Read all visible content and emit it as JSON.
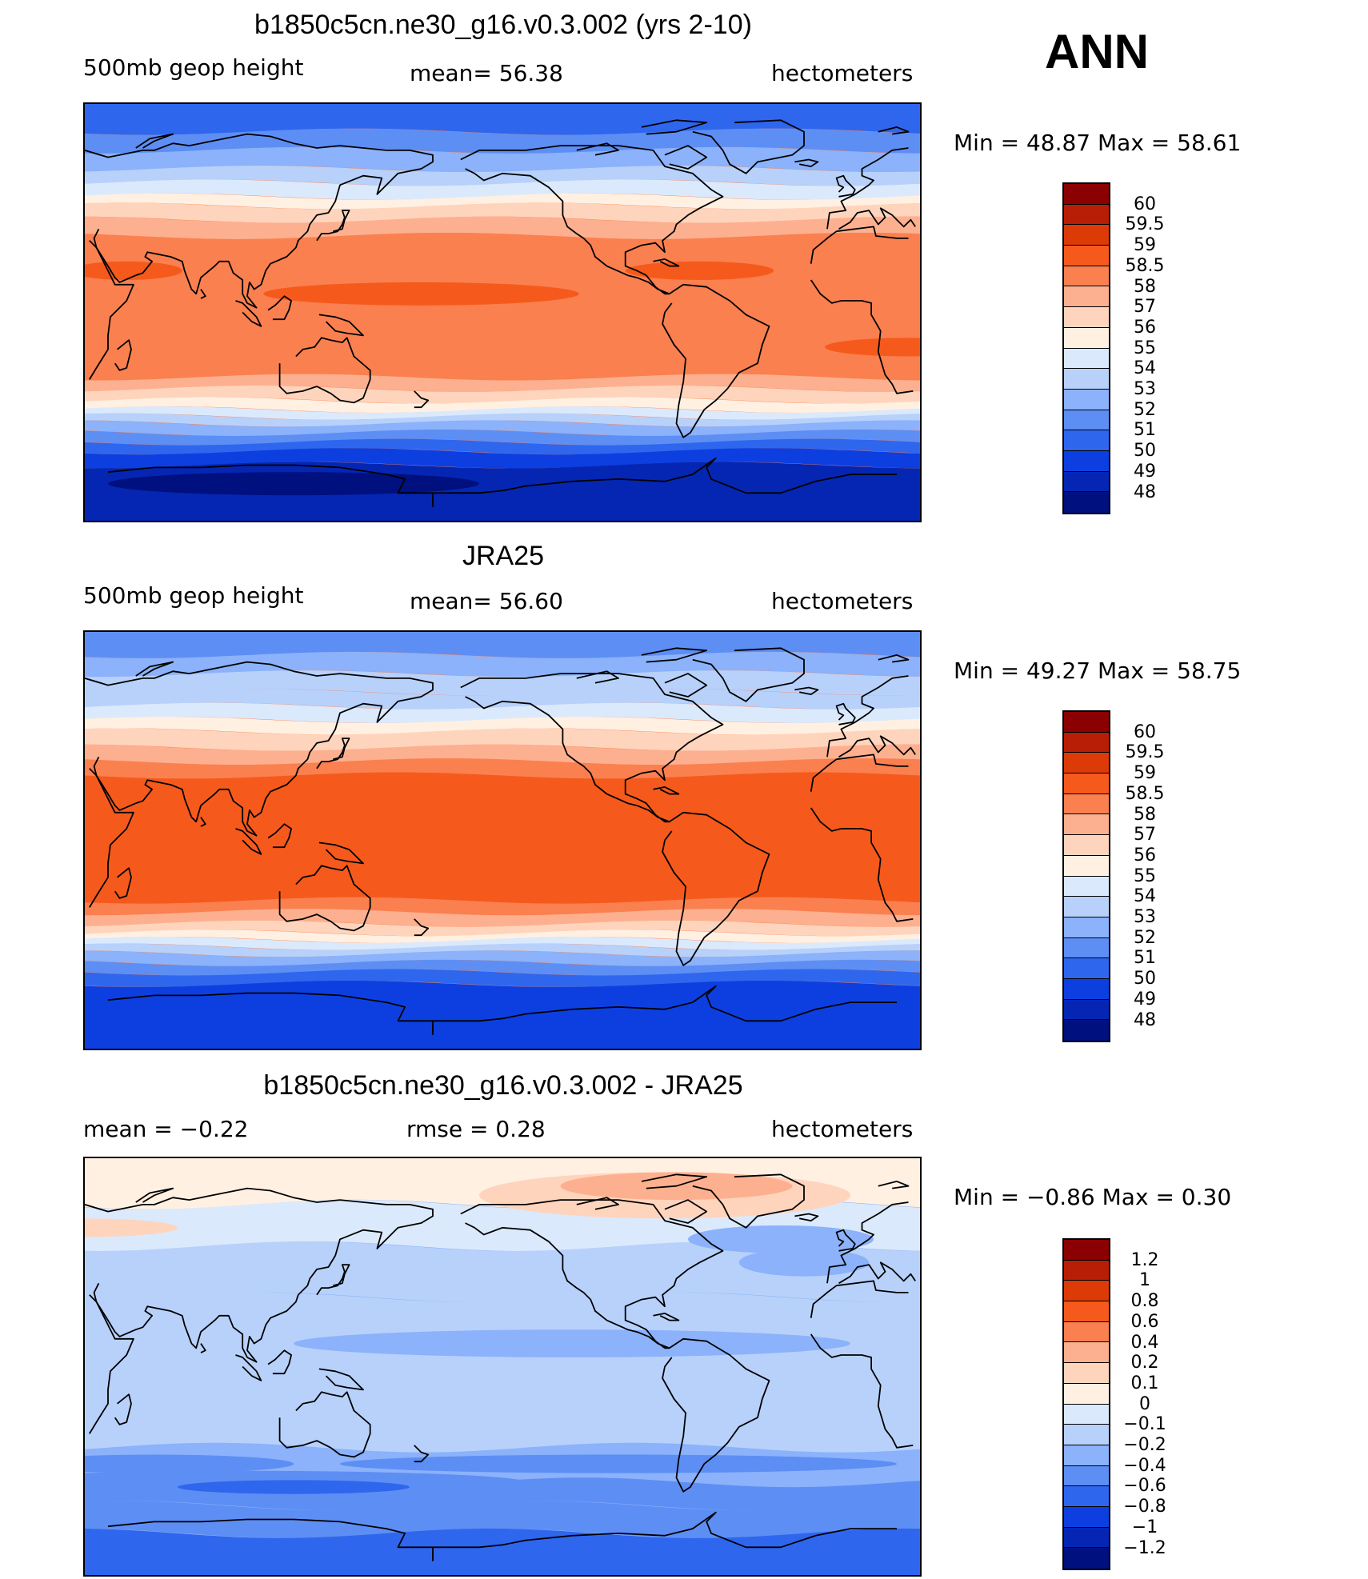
{
  "season": "ANN",
  "colors": {
    "abs_scale": [
      "#8b0000",
      "#b81d05",
      "#dc3a06",
      "#f55a1c",
      "#fa8050",
      "#fdb08f",
      "#ffd4bd",
      "#fff0e2",
      "#dbe9fc",
      "#b7d1fb",
      "#8bb2fa",
      "#5d8ef4",
      "#2f66ee",
      "#0d3fe0",
      "#0526b2",
      "#00107e"
    ],
    "diff_scale": [
      "#8b0000",
      "#b81d05",
      "#dc3a06",
      "#f55a1c",
      "#fa8050",
      "#fdb08f",
      "#ffd4bd",
      "#fff0e2",
      "#dbe9fc",
      "#b7d1fb",
      "#8bb2fa",
      "#5d8ef4",
      "#2f66ee",
      "#0d3fe0",
      "#0526b2",
      "#00107e"
    ],
    "coast": "#000000"
  },
  "panels": [
    {
      "title": "b1850c5cn.ne30_g16.v0.3.002 (yrs 2-10)",
      "left_label": "500mb geop height",
      "center_label": "mean=   56.38",
      "right_label": "hectometers",
      "min_max": "Min  =    48.87  Max  =    58.61",
      "colorbar_labels": [
        "60",
        "59.5",
        "59",
        "58.5",
        "58",
        "57",
        "56",
        "55",
        "54",
        "53",
        "52",
        "51",
        "50",
        "49",
        "48"
      ]
    },
    {
      "title": "JRA25",
      "left_label": "500mb geop height",
      "center_label": "mean=   56.60",
      "right_label": "hectometers",
      "min_max": "Min  =    49.27  Max  =    58.75",
      "colorbar_labels": [
        "60",
        "59.5",
        "59",
        "58.5",
        "58",
        "57",
        "56",
        "55",
        "54",
        "53",
        "52",
        "51",
        "50",
        "49",
        "48"
      ]
    },
    {
      "title": "b1850c5cn.ne30_g16.v0.3.002 - JRA25",
      "left_label": "mean  =    −0.22",
      "center_label": "rmse  =     0.28",
      "right_label": "hectometers",
      "min_max": "Min  =    −0.86  Max  =     0.30",
      "colorbar_labels": [
        "1.2",
        "1",
        "0.8",
        "0.6",
        "0.4",
        "0.2",
        "0.1",
        "0",
        "−0.1",
        "−0.2",
        "−0.4",
        "−0.6",
        "−0.8",
        "−1",
        "−1.2"
      ]
    }
  ]
}
